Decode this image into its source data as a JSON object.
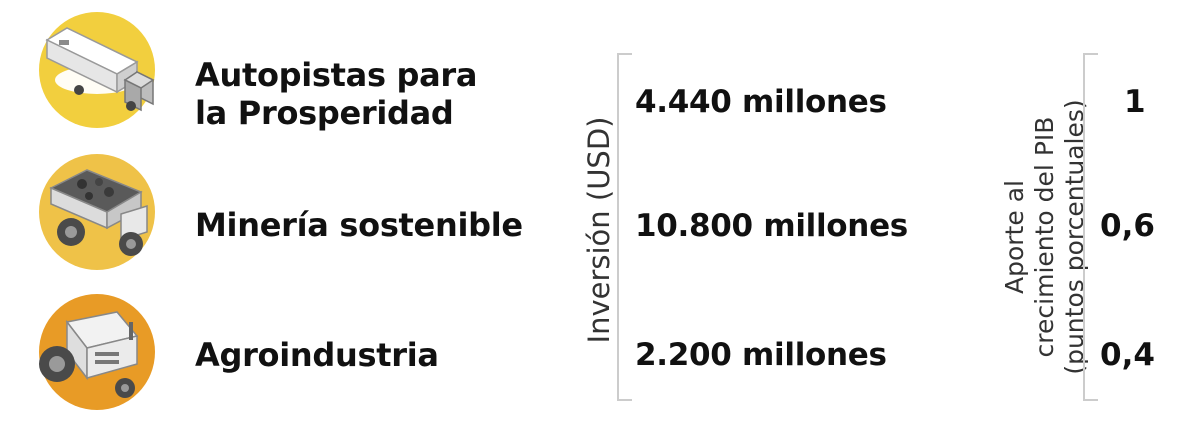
{
  "chart_data": {
    "type": "table",
    "title": "",
    "categories": [
      "Autopistas para la Prosperidad",
      "Minería sostenible",
      "Agroindustria"
    ],
    "category_lines": [
      [
        "Autopistas para",
        "la Prosperidad"
      ],
      [
        "Minería sostenible"
      ],
      [
        "Agroindustria"
      ]
    ],
    "columns": [
      {
        "label": "Inversión (USD)",
        "values": [
          4440,
          10800,
          2200
        ],
        "display": [
          "4.440 millones",
          "10.800 millones",
          "2.200 millones"
        ]
      },
      {
        "label_lines": [
          "Aporte al",
          "crecimiento del PIB",
          "(puntos porcentuales)"
        ],
        "values": [
          1,
          0.6,
          0.4
        ],
        "display": [
          "1",
          "0,6",
          "0,4"
        ]
      }
    ],
    "icons": [
      "truck-icon",
      "mining-dump-truck-icon",
      "tractor-icon"
    ],
    "colors": {
      "circle1": "#F2CF3E",
      "circle2": "#EFC248",
      "circle3": "#E89B26",
      "text": "#111111",
      "bracket": "#CCCCCC"
    }
  }
}
